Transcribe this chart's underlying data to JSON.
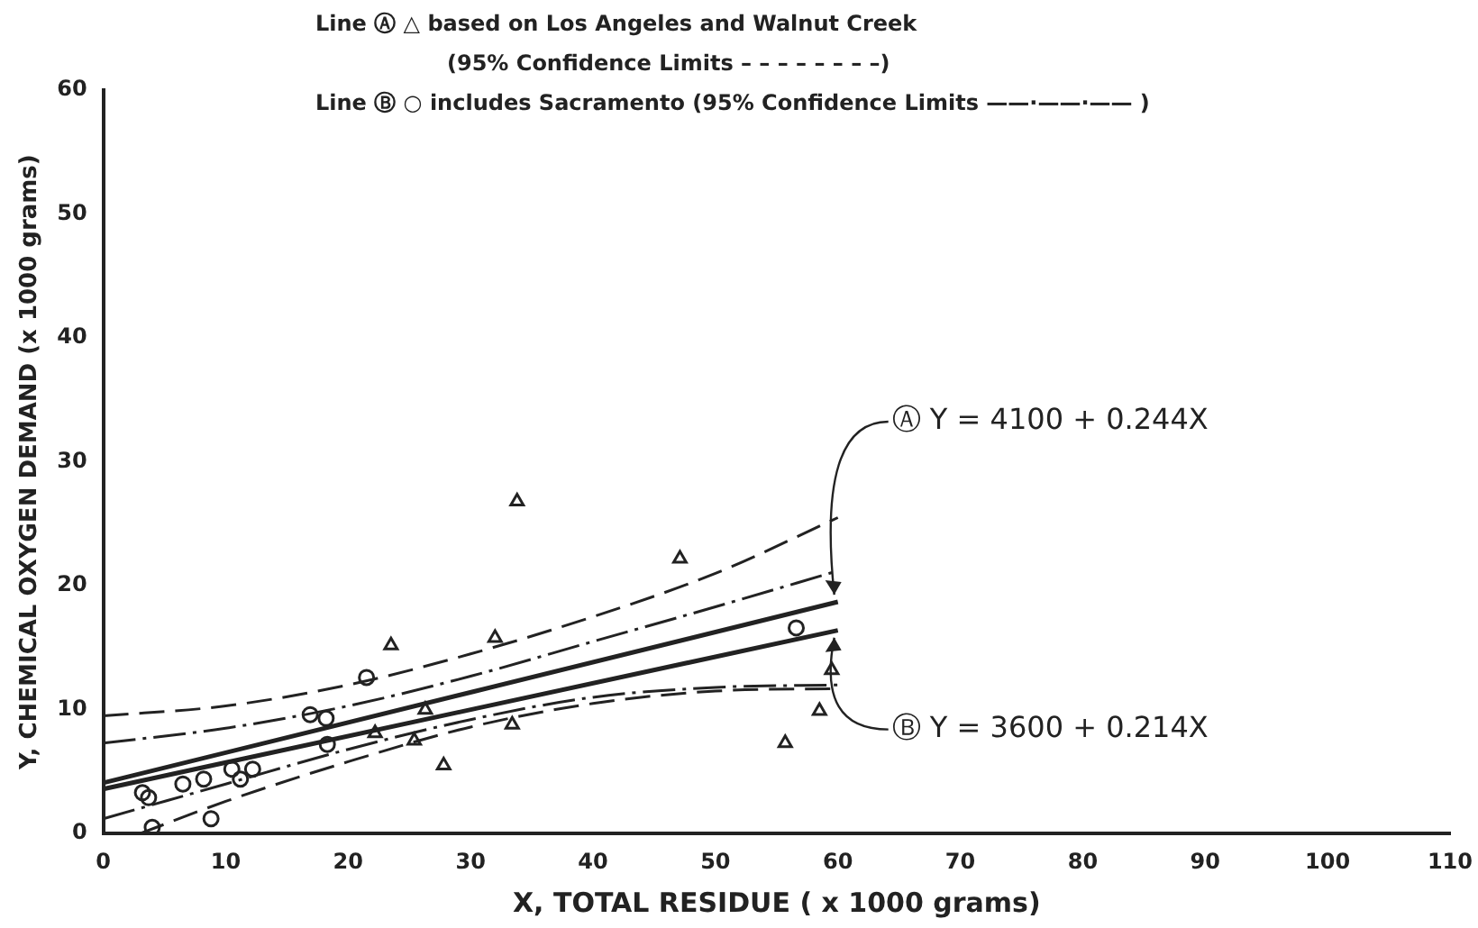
{
  "chart_data": {
    "type": "scatter",
    "xlabel": "X, TOTAL RESIDUE ( x 1000 grams)",
    "ylabel": "Y, CHEMICAL OXYGEN DEMAND (x 1000 grams)",
    "xlim": [
      0,
      110
    ],
    "xticks": [
      0,
      10,
      20,
      30,
      40,
      50,
      60,
      70,
      80,
      90,
      100,
      110
    ],
    "ylim": [
      0,
      60
    ],
    "yticks": [
      0,
      10,
      20,
      30,
      40,
      50,
      60
    ],
    "grid": false,
    "legend": false,
    "annotations": [
      "Line Ⓐ △ based on Los Angeles and Walnut Creek",
      "(95% Confidence Limits – – – – – – – –)",
      "Line Ⓑ ○ includes Sacramento (95% Confidence Limits ——·——·—— )",
      {
        "text": "Ⓐ Y = 4100 + 0.244X",
        "x": 60,
        "y": 18.7
      },
      {
        "text": "Ⓑ Y = 3600 + 0.214X",
        "x": 60,
        "y": 16.4
      }
    ],
    "series": [
      {
        "marker": "triangle",
        "color": "#222222",
        "x": [
          23.5,
          22.2,
          25.4,
          27.8,
          26.3,
          33.8,
          47.1,
          32.0,
          33.4,
          59.5,
          58.5,
          55.7
        ],
        "values": [
          15.2,
          8.1,
          7.5,
          5.5,
          10.0,
          26.8,
          22.2,
          15.8,
          8.8,
          13.2,
          9.9,
          7.3
        ]
      },
      {
        "marker": "circle",
        "color": "#222222",
        "x": [
          3.2,
          3.7,
          6.5,
          8.2,
          10.5,
          11.2,
          12.2,
          8.8,
          4.0,
          16.9,
          18.2,
          18.3,
          21.5,
          56.6
        ],
        "values": [
          3.3,
          2.9,
          4.0,
          4.4,
          5.2,
          4.4,
          5.2,
          1.2,
          0.5,
          9.6,
          9.3,
          7.2,
          12.6,
          16.6
        ]
      },
      {
        "type": "line",
        "line_style": "solid",
        "color": "#222222",
        "x": [
          0,
          60
        ],
        "values": [
          4.1,
          18.7
        ]
      },
      {
        "type": "line",
        "line_style": "solid",
        "color": "#222222",
        "x": [
          0,
          60
        ],
        "values": [
          3.6,
          16.4
        ]
      },
      {
        "type": "line",
        "line_style": "dashed",
        "color": "#222222",
        "x": [
          0,
          10,
          20,
          30,
          40,
          50,
          60
        ],
        "values": [
          9.5,
          10.3,
          12,
          14.5,
          17.5,
          21,
          25.5
        ]
      },
      {
        "type": "line",
        "line_style": "dashed",
        "color": "#222222",
        "x": [
          3,
          10,
          20,
          30,
          40,
          50,
          60
        ],
        "values": [
          0,
          2.6,
          5.8,
          8.6,
          10.5,
          11.5,
          11.7
        ]
      },
      {
        "type": "line",
        "line_style": "dotted",
        "color": "#222222",
        "x": [
          0,
          10,
          20,
          30,
          40,
          50,
          60
        ],
        "values": [
          7.3,
          8.5,
          10.3,
          12.7,
          15.5,
          18.3,
          21.2
        ]
      },
      {
        "type": "line",
        "line_style": "dotted",
        "color": "#222222",
        "x": [
          0,
          10,
          20,
          30,
          40,
          50,
          60
        ],
        "values": [
          1.2,
          4.0,
          6.8,
          9.2,
          11.0,
          11.8,
          12.0
        ]
      }
    ]
  }
}
